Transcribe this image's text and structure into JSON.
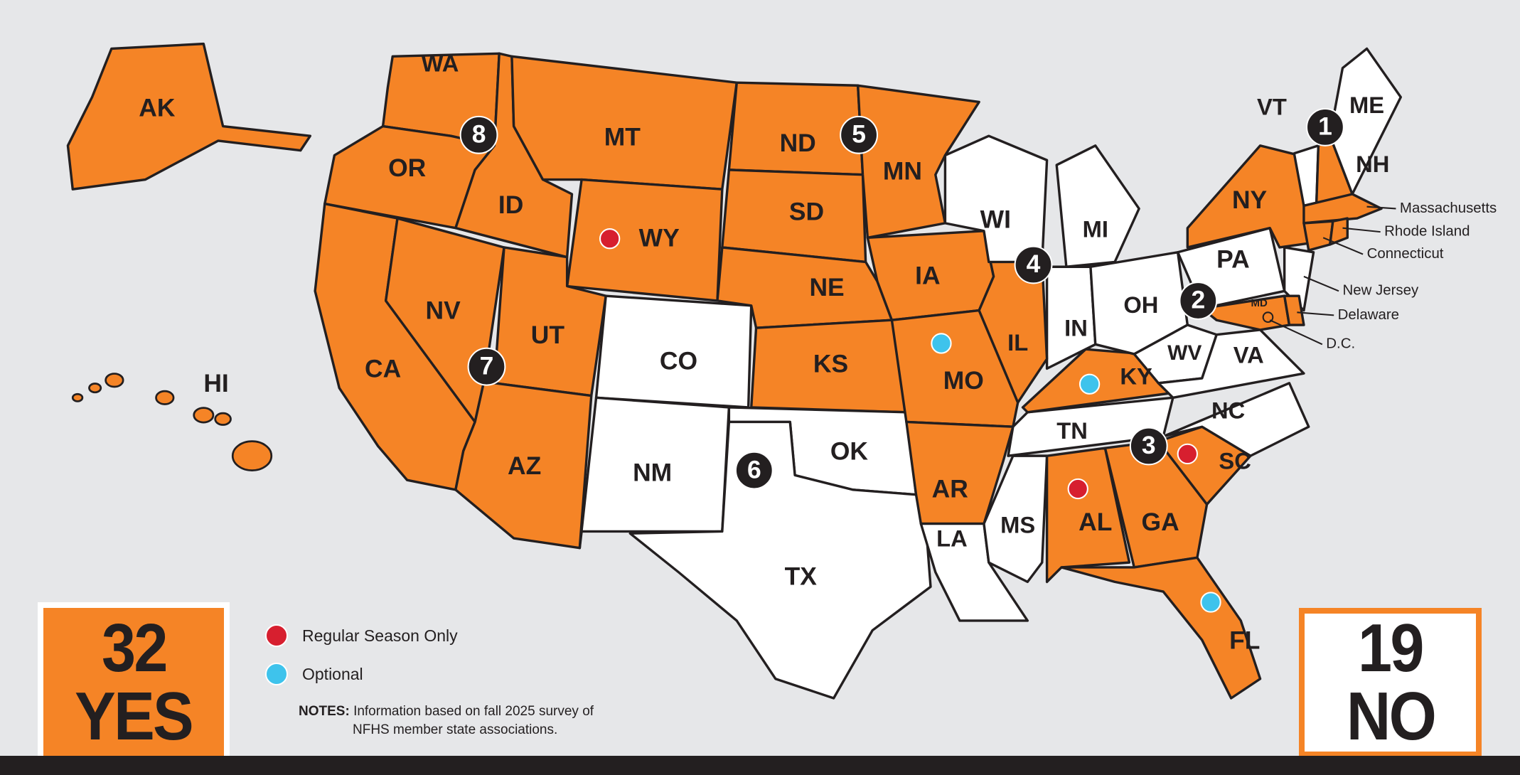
{
  "colors": {
    "yes": "#f58426",
    "no": "#ffffff",
    "regular_season_only": "#d71f2f",
    "optional": "#3ec3ec",
    "border": "#231f20",
    "background": "#e6e7e9"
  },
  "states": [
    {
      "abbr": "AK",
      "status": "yes"
    },
    {
      "abbr": "HI",
      "status": "yes"
    },
    {
      "abbr": "WA",
      "status": "yes"
    },
    {
      "abbr": "OR",
      "status": "yes"
    },
    {
      "abbr": "CA",
      "status": "yes"
    },
    {
      "abbr": "NV",
      "status": "yes"
    },
    {
      "abbr": "ID",
      "status": "yes"
    },
    {
      "abbr": "MT",
      "status": "yes"
    },
    {
      "abbr": "WY",
      "status": "yes",
      "marker": "regular_season_only"
    },
    {
      "abbr": "UT",
      "status": "yes"
    },
    {
      "abbr": "AZ",
      "status": "yes"
    },
    {
      "abbr": "CO",
      "status": "no"
    },
    {
      "abbr": "NM",
      "status": "no"
    },
    {
      "abbr": "ND",
      "status": "yes"
    },
    {
      "abbr": "SD",
      "status": "yes"
    },
    {
      "abbr": "NE",
      "status": "yes"
    },
    {
      "abbr": "KS",
      "status": "yes"
    },
    {
      "abbr": "OK",
      "status": "no"
    },
    {
      "abbr": "TX",
      "status": "no"
    },
    {
      "abbr": "MN",
      "status": "yes"
    },
    {
      "abbr": "IA",
      "status": "yes"
    },
    {
      "abbr": "MO",
      "status": "yes",
      "marker": "optional"
    },
    {
      "abbr": "AR",
      "status": "yes"
    },
    {
      "abbr": "LA",
      "status": "no"
    },
    {
      "abbr": "MS",
      "status": "no"
    },
    {
      "abbr": "AL",
      "status": "yes",
      "marker": "regular_season_only"
    },
    {
      "abbr": "GA",
      "status": "yes"
    },
    {
      "abbr": "FL",
      "status": "yes",
      "marker": "optional"
    },
    {
      "abbr": "SC",
      "status": "yes",
      "marker": "regular_season_only"
    },
    {
      "abbr": "NC",
      "status": "no"
    },
    {
      "abbr": "TN",
      "status": "no"
    },
    {
      "abbr": "KY",
      "status": "yes",
      "marker": "optional"
    },
    {
      "abbr": "IN",
      "status": "no"
    },
    {
      "abbr": "IL",
      "status": "yes"
    },
    {
      "abbr": "WI",
      "status": "no"
    },
    {
      "abbr": "MI",
      "status": "no"
    },
    {
      "abbr": "OH",
      "status": "no"
    },
    {
      "abbr": "WV",
      "status": "no"
    },
    {
      "abbr": "VA",
      "status": "no"
    },
    {
      "abbr": "PA",
      "status": "no"
    },
    {
      "abbr": "NY",
      "status": "yes"
    },
    {
      "abbr": "NJ",
      "status": "no"
    },
    {
      "abbr": "MD",
      "status": "yes"
    },
    {
      "abbr": "DE",
      "status": "yes"
    },
    {
      "abbr": "VT",
      "status": "no"
    },
    {
      "abbr": "NH",
      "status": "yes"
    },
    {
      "abbr": "ME",
      "status": "no"
    },
    {
      "abbr": "MA",
      "status": "yes"
    },
    {
      "abbr": "CT",
      "status": "yes"
    },
    {
      "abbr": "RI",
      "status": "yes"
    }
  ],
  "callouts": [
    {
      "abbr": "MA",
      "label": "Massachusetts"
    },
    {
      "abbr": "RI",
      "label": "Rhode Island"
    },
    {
      "abbr": "CT",
      "label": "Connecticut"
    },
    {
      "abbr": "NJ",
      "label": "New Jersey"
    },
    {
      "abbr": "DE",
      "label": "Delaware"
    },
    {
      "abbr": "DC",
      "label": "D.C."
    }
  ],
  "regions": [
    "1",
    "2",
    "3",
    "4",
    "5",
    "6",
    "7",
    "8"
  ],
  "summary": {
    "yes_count": "32",
    "yes_label": "YES",
    "no_count": "19",
    "no_label": "NO"
  },
  "legend": {
    "regular_season_only": "Regular Season Only",
    "optional": "Optional"
  },
  "notes": {
    "label": "NOTES:",
    "line1": "Information based on fall 2025 survey of",
    "line2": "NFHS member state associations."
  }
}
